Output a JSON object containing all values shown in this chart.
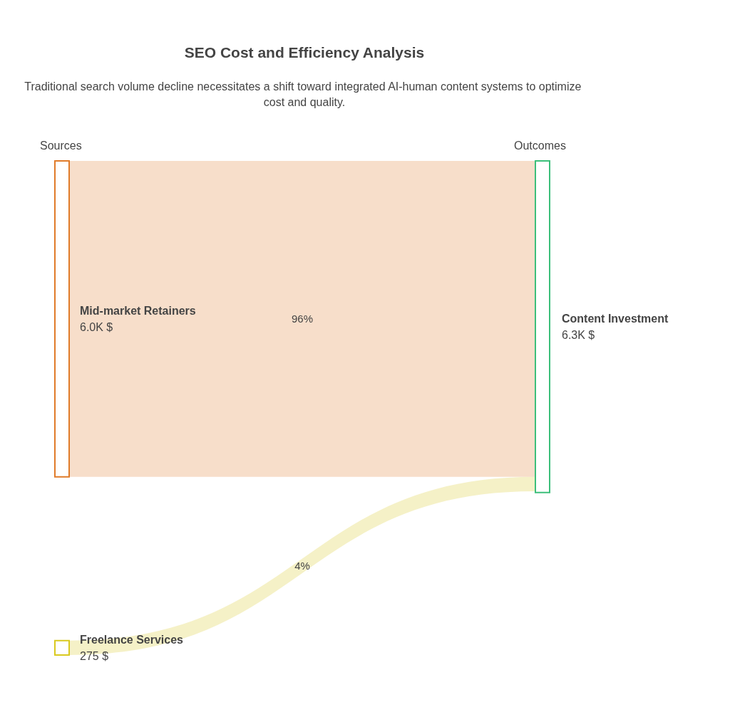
{
  "chart_data": {
    "type": "other",
    "title": "SEO Cost and Efficiency Analysis",
    "subtitle": "Traditional search volume decline necessitates a shift toward integrated AI-human content systems to optimize cost and quality.",
    "categories": [
      "Mid-market Retainers",
      "Freelance Services",
      "Content Investment"
    ],
    "values": [
      6000,
      275,
      6300
    ],
    "value_labels": [
      "6.0K $",
      "275 $",
      "6.3K $"
    ],
    "colors": [
      "#e07b2a",
      "#d9c91f",
      "#3cbf7a"
    ],
    "annotations": [
      "Sources",
      "Outcomes",
      "96%",
      "4%"
    ]
  }
}
